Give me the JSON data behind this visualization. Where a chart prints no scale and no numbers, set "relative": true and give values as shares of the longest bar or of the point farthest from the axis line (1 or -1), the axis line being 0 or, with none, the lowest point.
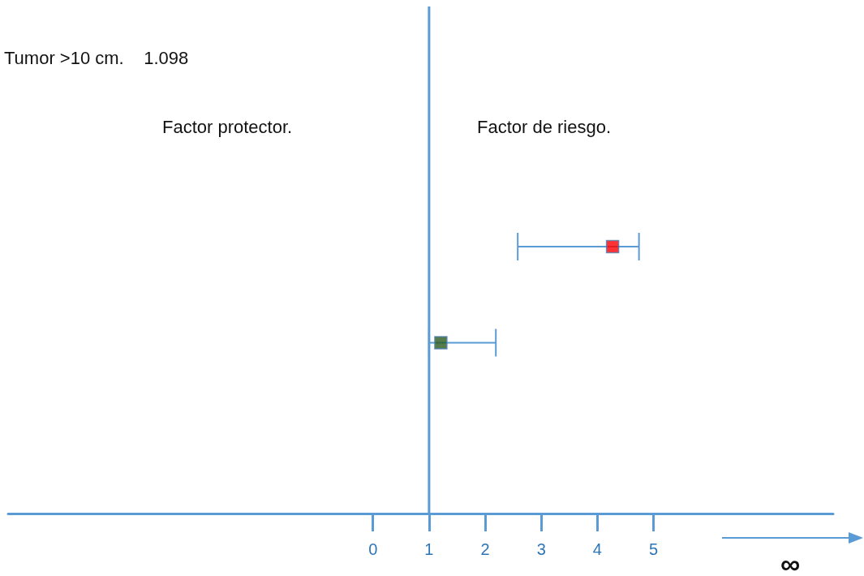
{
  "chart_data": {
    "type": "scatter",
    "relative": true,
    "x": [
      4.27,
      1.21
    ],
    "values": [
      1,
      0.64
    ],
    "xerrors": [
      [
        2.58,
        4.74
      ],
      [
        1.0,
        2.19
      ]
    ],
    "colors": [
      "#ff0000",
      "#2b5a1e"
    ],
    "marker": "square",
    "xlim": [
      -6.5,
      8.2
    ],
    "xticks": [
      0,
      1,
      2,
      3,
      4,
      5
    ],
    "ref_lines": [
      {
        "axis": "x",
        "value": 1,
        "color": "#5b9bd5"
      }
    ],
    "annotations": [
      "Tumor >10 cm.    1.098",
      "Factor protector.",
      "Factor de riesgo.",
      "∞"
    ],
    "grid": false
  }
}
